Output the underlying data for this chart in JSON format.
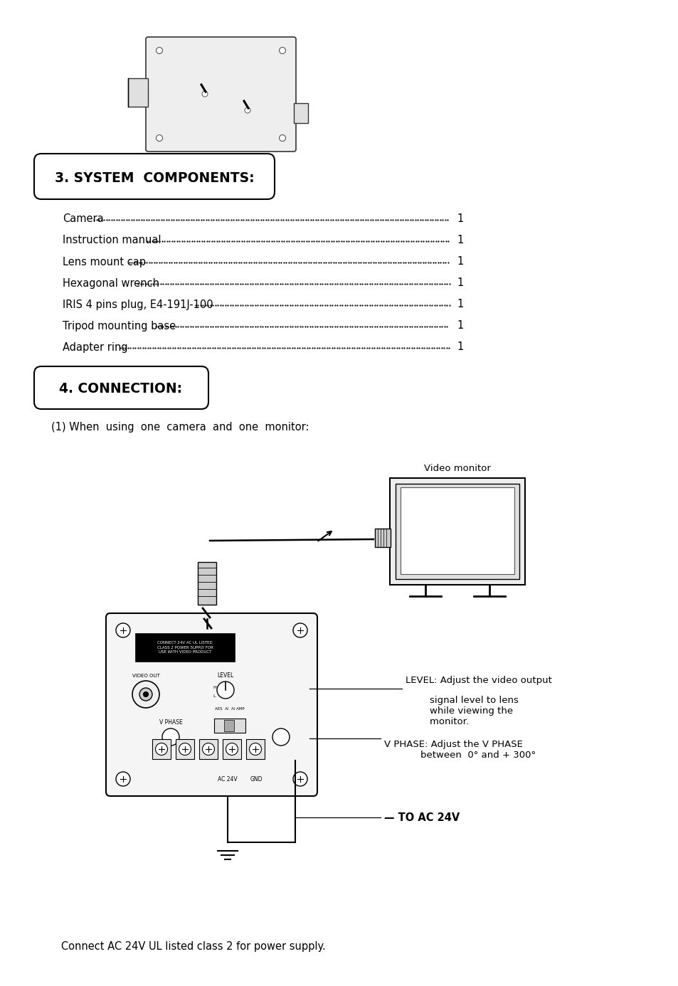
{
  "bg_color": "#ffffff",
  "section3_title": "3. SYSTEM  COMPONENTS:",
  "section4_title": "4. CONNECTION:",
  "components": [
    "Camera",
    "Instruction manual",
    "Lens mount cap",
    "Hexagonal wrench",
    "IRIS 4 pins plug, E4-191J-100",
    "Tripod mounting base",
    "Adapter ring"
  ],
  "connection_subtitle": "(1) When  using  one  camera  and  one  monitor:",
  "video_monitor_label": "Video monitor",
  "level_text_line1": "LEVEL: Adjust the video output",
  "level_text_line2": "        signal level to lens",
  "level_text_line3": "        while viewing the",
  "level_text_line4": "        monitor.",
  "vphase_text_line1": "V PHASE: Adjust the V PHASE",
  "vphase_text_line2": "            between  0° and + 300°",
  "toac_text": "— TO AC 24V",
  "bottom_text": "   Connect AC 24V UL listed class 2 for power supply.",
  "connector_label_text": "CONNECT 24V AC UL LISTED\nCLASS 2 POWER SUPPLY FOR\nUSE WITH VIDEO PRODUCT",
  "video_out_label": "VIDEO OUT",
  "level_label": "LEVEL",
  "h_label": "H",
  "l_label": "L",
  "aes_label": "AES  AI  AI AMP",
  "vphase_label": "V PHASE",
  "ac24v_label": "AC 24V",
  "gnd_label": "GND"
}
